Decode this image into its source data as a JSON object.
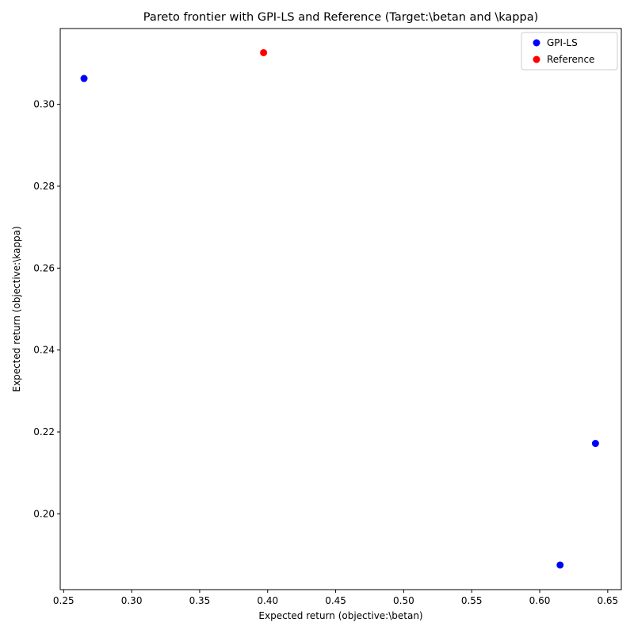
{
  "chart_data": {
    "type": "scatter",
    "title": "Pareto frontier with GPI-LS and Reference (Target:\\betan and \\kappa)",
    "xlabel": "Expected return (objective:\\betan)",
    "ylabel": "Expected return (objective:\\kappa)",
    "xlim": [
      0.2475,
      0.66
    ],
    "ylim": [
      0.1815,
      0.3185
    ],
    "xticks": [
      "0.25",
      "0.30",
      "0.35",
      "0.40",
      "0.45",
      "0.50",
      "0.55",
      "0.60",
      "0.65"
    ],
    "yticks": [
      "0.20",
      "0.22",
      "0.24",
      "0.26",
      "0.28",
      "0.30"
    ],
    "grid": false,
    "legend_position": "top-right",
    "series": [
      {
        "name": "GPI-LS",
        "color": "#0000ff",
        "points": [
          {
            "x": 0.265,
            "y": 0.3063
          },
          {
            "x": 0.641,
            "y": 0.2172
          },
          {
            "x": 0.615,
            "y": 0.1875
          }
        ]
      },
      {
        "name": "Reference",
        "color": "#ff0000",
        "points": [
          {
            "x": 0.397,
            "y": 0.3126
          }
        ]
      }
    ]
  }
}
